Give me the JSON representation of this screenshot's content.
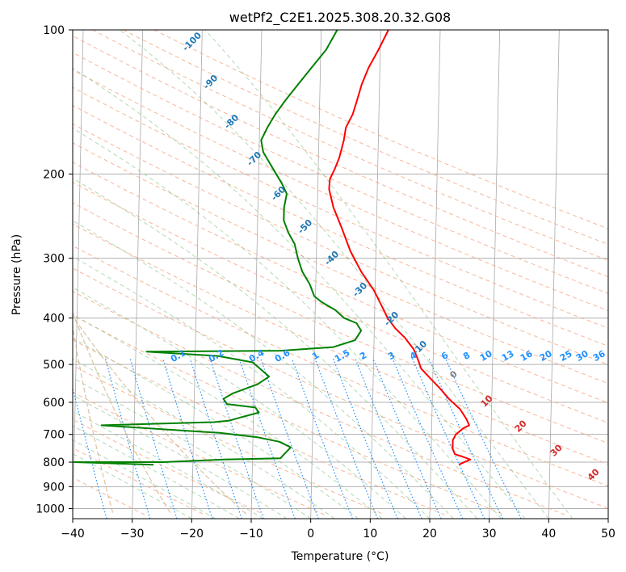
{
  "chart_data": {
    "type": "line",
    "title": "wetPf2_C2E1.2025.308.20.32.G08",
    "xlabel": "Temperature (°C)",
    "ylabel": "Pressure (hPa)",
    "xlim": [
      -40,
      50
    ],
    "ylim": [
      1050,
      100
    ],
    "y_scale": "log",
    "grid": true,
    "x_ticks": [
      -40,
      -30,
      -20,
      -10,
      0,
      10,
      20,
      30,
      40,
      50
    ],
    "y_ticks": [
      100,
      200,
      300,
      400,
      500,
      600,
      700,
      800,
      900,
      1000
    ],
    "colors": {
      "temperature": "#ff0000",
      "dewpoint": "#008000",
      "isotherm_labels": "#1f77b4",
      "mixing_ratio_labels": "#1e90ff",
      "warm_isotherm_labels": "#d62728",
      "zero_label": "#808080"
    },
    "series": [
      {
        "points": [
          [
            24.7,
            810
          ],
          [
            25.6,
            800
          ],
          [
            26.6,
            790
          ],
          [
            25.4,
            780
          ],
          [
            24.0,
            770
          ],
          [
            23.6,
            750
          ],
          [
            23.6,
            720
          ],
          [
            24.1,
            700
          ],
          [
            25.3,
            680
          ],
          [
            26.3,
            670
          ],
          [
            25.8,
            650
          ],
          [
            24.7,
            620
          ],
          [
            22.8,
            590
          ],
          [
            21.2,
            560
          ],
          [
            19.3,
            530
          ],
          [
            18.0,
            510
          ],
          [
            17.5,
            490
          ],
          [
            16.7,
            465
          ],
          [
            15.2,
            440
          ],
          [
            13.5,
            420
          ],
          [
            12.2,
            400
          ],
          [
            11.3,
            380
          ],
          [
            9.8,
            350
          ],
          [
            7.6,
            320
          ],
          [
            5.7,
            290
          ],
          [
            4.2,
            260
          ],
          [
            2.7,
            235
          ],
          [
            1.9,
            215
          ],
          [
            2.0,
            205
          ],
          [
            2.8,
            195
          ],
          [
            3.5,
            185
          ],
          [
            4.2,
            170
          ],
          [
            4.5,
            160
          ],
          [
            5.6,
            150
          ],
          [
            6.3,
            140
          ],
          [
            7.0,
            130
          ],
          [
            8.1,
            120
          ],
          [
            9.7,
            110
          ],
          [
            11.3,
            100
          ]
        ]
      },
      {
        "points": [
          [
            -26.6,
            810
          ],
          [
            -40,
            800
          ],
          [
            -25,
            800
          ],
          [
            -14.8,
            790
          ],
          [
            -5.3,
            785
          ],
          [
            -4.7,
            770
          ],
          [
            -3.6,
            745
          ],
          [
            -5.6,
            725
          ],
          [
            -9.2,
            710
          ],
          [
            -15.6,
            695
          ],
          [
            -35.5,
            670
          ],
          [
            -16.6,
            660
          ],
          [
            -14.0,
            655
          ],
          [
            -12.1,
            645
          ],
          [
            -9.1,
            630
          ],
          [
            -9.7,
            615
          ],
          [
            -14.5,
            605
          ],
          [
            -15.1,
            590
          ],
          [
            -13.6,
            575
          ],
          [
            -9.4,
            550
          ],
          [
            -7.5,
            530
          ],
          [
            -10.3,
            495
          ],
          [
            -16.2,
            480
          ],
          [
            -28.2,
            470
          ],
          [
            -5.7,
            468
          ],
          [
            3.2,
            460
          ],
          [
            6.8,
            445
          ],
          [
            7.8,
            425
          ],
          [
            7.0,
            410
          ],
          [
            4.9,
            400
          ],
          [
            3.4,
            385
          ],
          [
            1.0,
            370
          ],
          [
            -0.2,
            360
          ],
          [
            -1.0,
            340
          ],
          [
            -2.3,
            320
          ],
          [
            -3.1,
            300
          ],
          [
            -3.7,
            280
          ],
          [
            -4.8,
            265
          ],
          [
            -5.6,
            250
          ],
          [
            -5.6,
            235
          ],
          [
            -5.2,
            220
          ],
          [
            -6.0,
            210
          ],
          [
            -7.6,
            195
          ],
          [
            -9.3,
            180
          ],
          [
            -9.7,
            170
          ],
          [
            -8.7,
            160
          ],
          [
            -7.4,
            150
          ],
          [
            -5.7,
            140
          ],
          [
            -3.7,
            130
          ],
          [
            -1.5,
            120
          ],
          [
            0.9,
            110
          ],
          [
            2.7,
            100
          ]
        ]
      }
    ],
    "isotherm_labels": [
      "-100",
      "-90",
      "-80",
      "-70",
      "-60",
      "-50",
      "-40",
      "-30",
      "-20",
      "-10",
      "0",
      "10",
      "20",
      "30",
      "40"
    ],
    "mixing_ratio_labels": [
      "0.1",
      "0.2",
      "0.4",
      "0.6",
      "1",
      "1.5",
      "2",
      "3",
      "4",
      "6",
      "8",
      "10",
      "13",
      "16",
      "20",
      "25",
      "30",
      "36"
    ]
  }
}
